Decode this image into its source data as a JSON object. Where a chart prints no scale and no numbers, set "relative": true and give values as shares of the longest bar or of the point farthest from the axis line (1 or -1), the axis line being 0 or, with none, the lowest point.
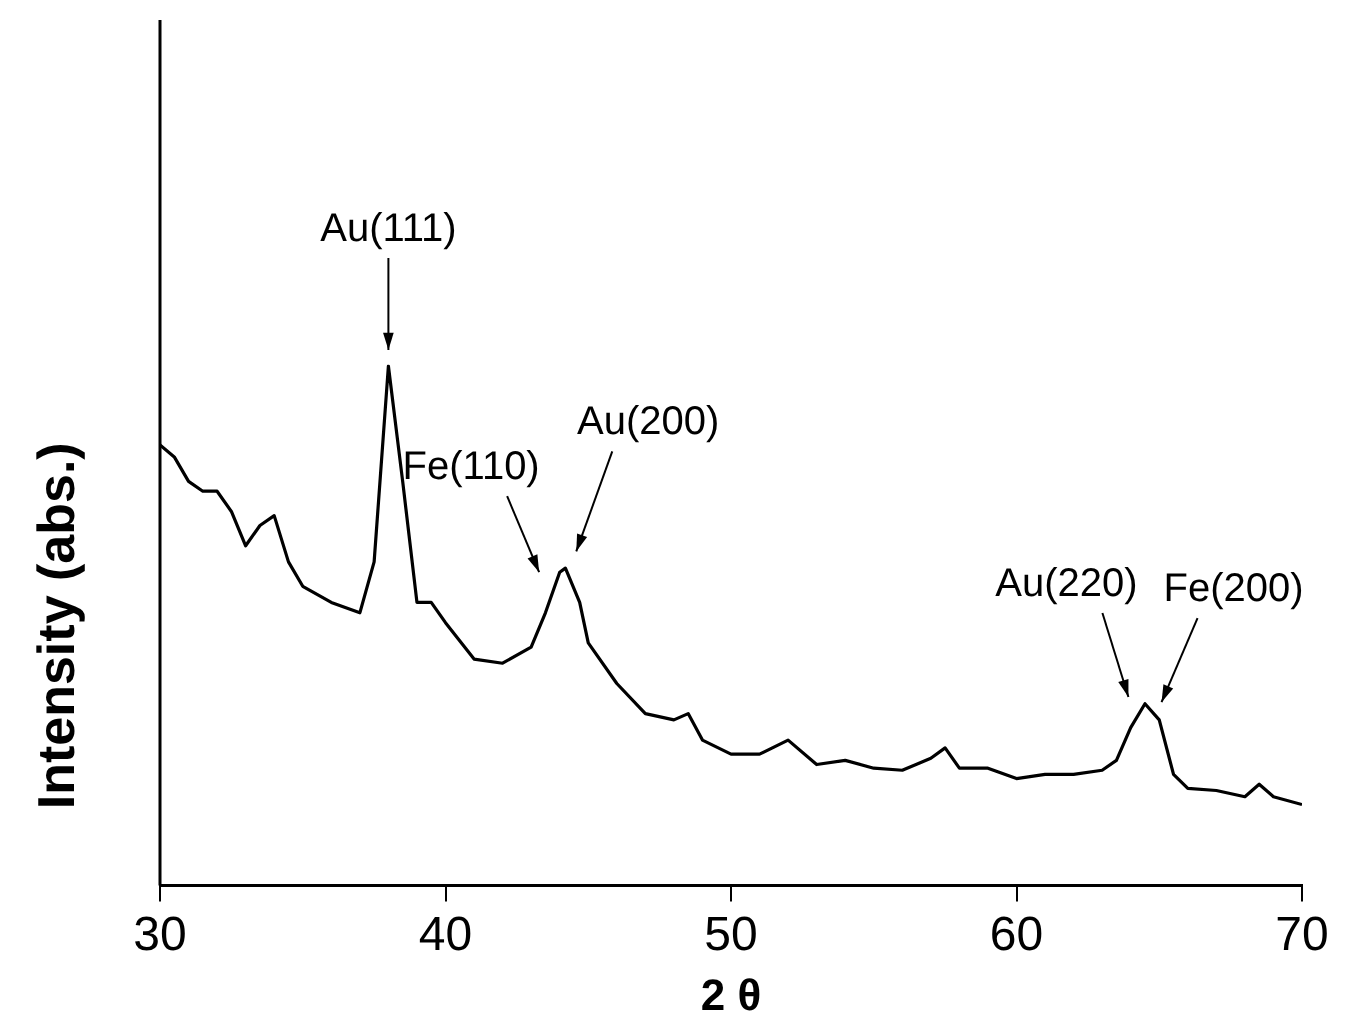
{
  "chart_data": {
    "type": "line",
    "xlabel": "2 θ",
    "ylabel": "Intensity (abs.)",
    "relative": true,
    "xlim": [
      30,
      70
    ],
    "xticks": [
      30,
      40,
      50,
      60,
      70
    ],
    "grid": false,
    "legend": false,
    "marker": "none",
    "line_style": "solid",
    "series": [
      {
        "color": "#000000",
        "x": [
          30,
          30.5,
          31,
          31.5,
          32,
          32.5,
          33,
          33.5,
          34,
          34.5,
          35,
          36,
          37,
          37.5,
          38,
          38.5,
          39,
          39.5,
          40,
          41,
          42,
          43,
          43.5,
          44,
          44.2,
          44.7,
          45,
          46,
          47,
          48,
          48.5,
          49,
          50,
          51,
          52,
          53,
          54,
          55,
          56,
          57,
          57.5,
          58,
          59,
          60,
          61,
          62,
          63,
          63.5,
          64,
          64.5,
          65,
          65.5,
          66,
          67,
          68,
          68.5,
          69,
          70
        ],
        "values": [
          0.848,
          0.825,
          0.778,
          0.759,
          0.759,
          0.72,
          0.654,
          0.693,
          0.712,
          0.623,
          0.576,
          0.545,
          0.525,
          0.623,
          1.0,
          0.778,
          0.545,
          0.545,
          0.506,
          0.436,
          0.428,
          0.459,
          0.525,
          0.603,
          0.611,
          0.545,
          0.467,
          0.389,
          0.331,
          0.319,
          0.331,
          0.28,
          0.253,
          0.253,
          0.28,
          0.233,
          0.241,
          0.226,
          0.222,
          0.245,
          0.265,
          0.226,
          0.226,
          0.206,
          0.214,
          0.214,
          0.222,
          0.241,
          0.304,
          0.35,
          0.319,
          0.214,
          0.187,
          0.183,
          0.171,
          0.195,
          0.171,
          0.156
        ]
      }
    ],
    "annotations": [
      {
        "text": "Au(111)",
        "x": 38,
        "y": 1.0
      },
      {
        "text": "Fe(110)",
        "x": 43.7,
        "y": 0.58
      },
      {
        "text": "Au(200)",
        "x": 44.3,
        "y": 0.62
      },
      {
        "text": "Au(220)",
        "x": 64.2,
        "y": 0.34
      },
      {
        "text": "Fe(200)",
        "x": 64.8,
        "y": 0.33
      }
    ]
  }
}
